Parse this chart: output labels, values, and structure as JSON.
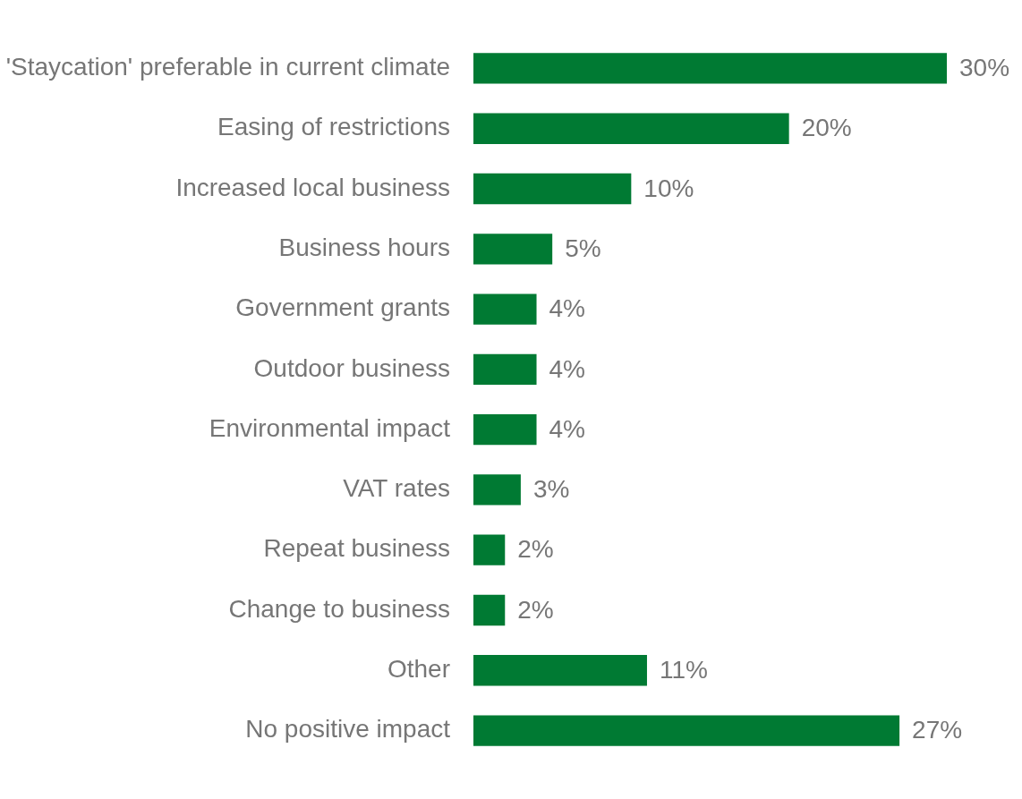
{
  "chart_data": {
    "type": "bar",
    "orientation": "horizontal",
    "categories": [
      "'Staycation' preferable in current climate",
      "Easing of restrictions",
      "Increased local business",
      "Business hours",
      "Government grants",
      "Outdoor business",
      "Environmental impact",
      "VAT rates",
      "Repeat business",
      "Change to business",
      "Other",
      "No positive impact"
    ],
    "values": [
      30,
      20,
      10,
      5,
      4,
      4,
      4,
      3,
      2,
      2,
      11,
      27
    ],
    "value_labels": [
      "30%",
      "20%",
      "10%",
      "5%",
      "4%",
      "4%",
      "4%",
      "3%",
      "2%",
      "2%",
      "11%",
      "27%"
    ],
    "color": "#007a33",
    "xlim": [
      0,
      30
    ],
    "grid": false,
    "legend": false
  }
}
